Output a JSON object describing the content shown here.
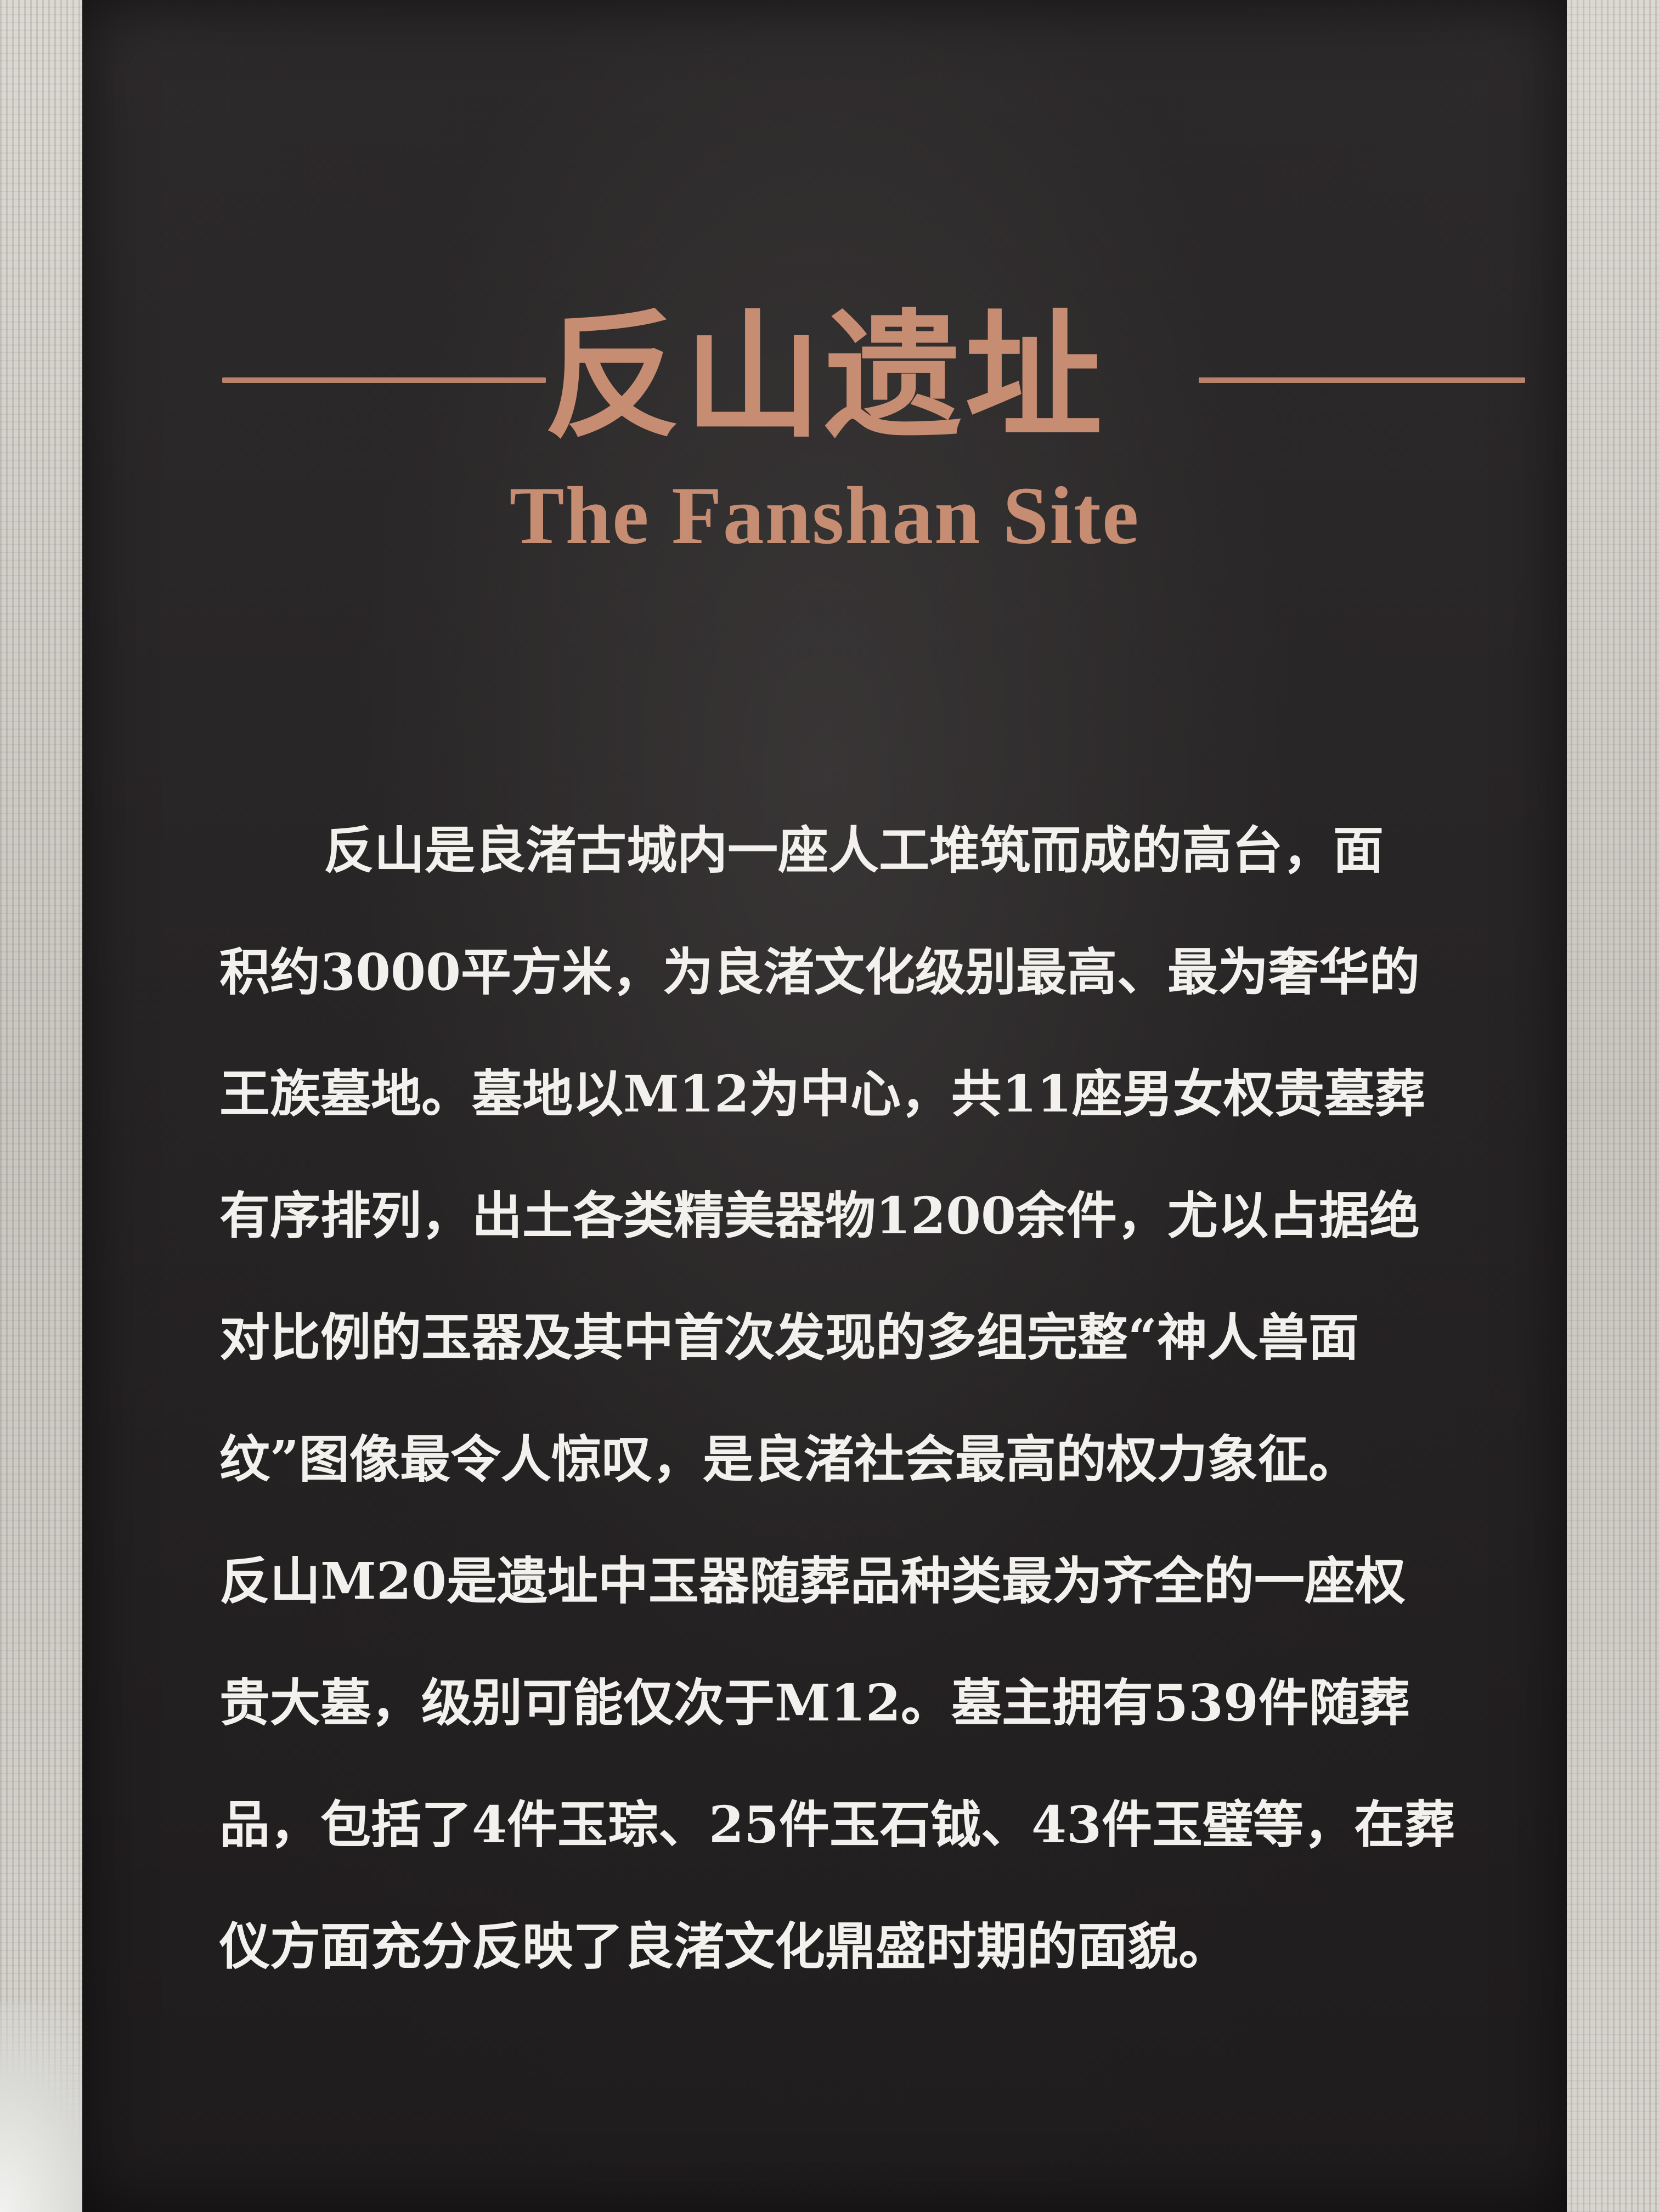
{
  "panel": {
    "title_cn": "反山遗址",
    "title_en": "The Fanshan Site",
    "accent_color": "#c78d72",
    "body_lines": [
      "反山是良渚古城内一座人工堆筑而成的高台，面",
      "积约3000平方米，为良渚文化级别最高、最为奢华的",
      "王族墓地。墓地以M12为中心，共11座男女权贵墓葬",
      "有序排列，出土各类精美器物1200余件，尤以占据绝",
      "对比例的玉器及其中首次发现的多组完整“神人兽面",
      "纹”图像最令人惊叹，是良渚社会最高的权力象征。",
      "反山M20是遗址中玉器随葬品种类最为齐全的一座权",
      "贵大墓，级别可能仅次于M12。墓主拥有539件随葬",
      "品，包括了4件玉琮、25件玉石钺、43件玉璧等，在葬",
      "仪方面充分反映了良渚文化鼎盛时期的面貌。"
    ]
  }
}
